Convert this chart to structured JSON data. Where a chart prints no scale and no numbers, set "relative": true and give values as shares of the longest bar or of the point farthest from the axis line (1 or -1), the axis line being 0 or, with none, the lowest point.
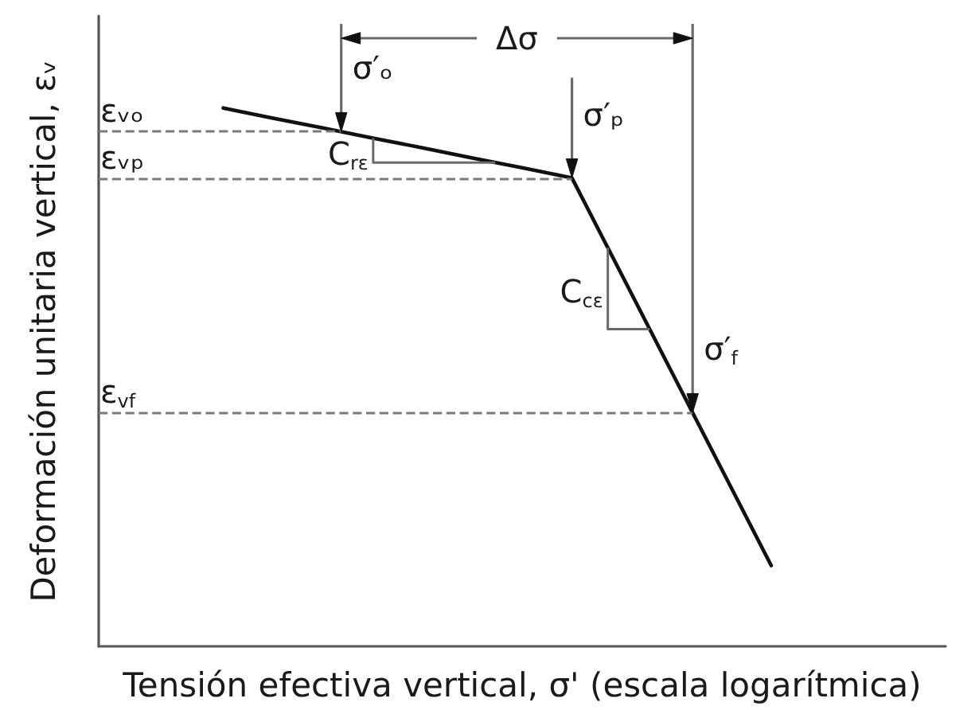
{
  "chart_data": {
    "type": "line",
    "relative": true,
    "xlabel": "Tensión efectiva vertical, σ' (escala logarítmica)",
    "ylabel": "Deformación unitaria vertical, εᵥ",
    "categories": [
      null,
      null,
      null,
      null,
      null,
      null,
      null,
      null,
      null,
      null,
      null,
      null,
      null,
      null,
      null,
      null,
      null
    ],
    "values": [
      null,
      null,
      1,
      0.981,
      0.963,
      0.944,
      0.926,
      0.907,
      0.889,
      0.87,
      0.69,
      0.51,
      0.33,
      0.15,
      null,
      null,
      null
    ],
    "color": "#111111",
    "marker": "none",
    "grid": false,
    "ref_lines": [
      {
        "axis": "y",
        "value": 0.956,
        "label": "εᵥₒ",
        "color": "#7a7a7a",
        "line_style": "dashed"
      },
      {
        "axis": "y",
        "value": 0.87,
        "label": "εᵥₚ",
        "color": "#7a7a7a",
        "line_style": "dashed"
      },
      {
        "axis": "y",
        "value": 0.434,
        "label": "ε$_{vf}$",
        "color": "#7a7a7a",
        "line_style": "dashed"
      }
    ],
    "annotations": [
      "σ′ₒ",
      "σ′ₚ",
      "σ′$_{f}$",
      "Δσ",
      "C$_{rε}$",
      "C$_{cε}$"
    ]
  }
}
